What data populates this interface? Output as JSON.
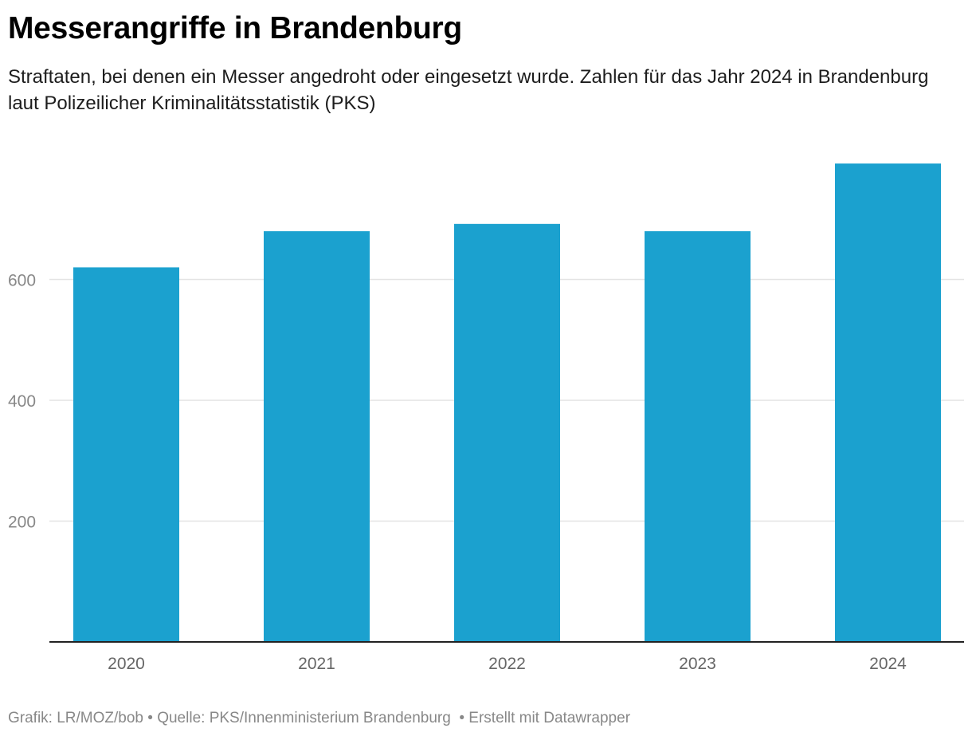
{
  "title": "Messerangriffe in Brandenburg",
  "subtitle": "Straftaten, bei denen ein Messer angedroht oder eingesetzt wurde. Zahlen für das Jahr 2024 in Brandenburg laut Polizeilicher Kriminalitätsstatistik (PKS)",
  "footer": {
    "grafik": "Grafik: LR/MOZ/bob",
    "quelle": " • Quelle: PKS/Innenministerium Brandenburg ",
    "erstellt": " • Erstellt mit Datawrapper"
  },
  "colors": {
    "bar": "#1ba1cf",
    "grid": "#e4e4e4",
    "axis": "#222222",
    "tick": "#888888",
    "xlabel": "#666666"
  },
  "chart_data": {
    "type": "bar",
    "title": "Messerangriffe in Brandenburg",
    "xlabel": "",
    "ylabel": "",
    "categories": [
      "2020",
      "2021",
      "2022",
      "2023",
      "2024"
    ],
    "values": [
      620,
      680,
      692,
      680,
      792
    ],
    "yticks": [
      200,
      400,
      600
    ],
    "ylim": [
      0,
      800
    ],
    "grid": true,
    "legend": "none"
  }
}
